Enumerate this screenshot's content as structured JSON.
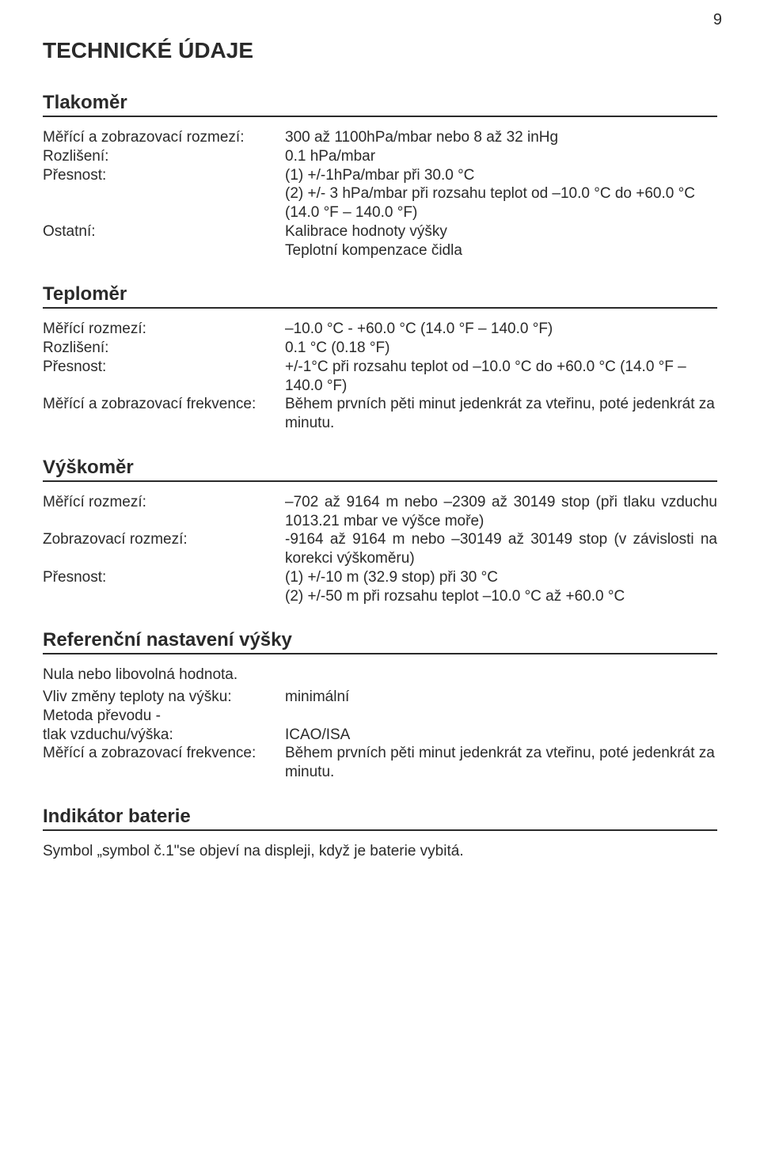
{
  "page_number": "9",
  "title": "TECHNICKÉ ÚDAJE",
  "barometer": {
    "heading": "Tlakoměr",
    "rows": {
      "range_label": "Měřící a zobrazovací rozmezí:",
      "range_value": "300 až 1100hPa/mbar nebo 8 až 32 inHg",
      "resolution_label": "Rozlišení:",
      "resolution_value": "0.1 hPa/mbar",
      "accuracy_label": "Přesnost:",
      "accuracy_line1": "(1) +/-1hPa/mbar při 30.0 °C",
      "accuracy_line2": "(2) +/- 3 hPa/mbar při rozsahu teplot od –10.0 °C do +60.0 °C (14.0 °F – 140.0 °F)",
      "other_label": "Ostatní:",
      "other_line1": "Kalibrace hodnoty výšky",
      "other_line2": "Teplotní kompenzace čidla"
    }
  },
  "thermometer": {
    "heading": "Teploměr",
    "rows": {
      "range_label": "Měřící rozmezí:",
      "range_value": "–10.0 °C - +60.0 °C (14.0 °F – 140.0 °F)",
      "resolution_label": "Rozlišení:",
      "resolution_value": "0.1 °C (0.18 °F)",
      "accuracy_label": "Přesnost:",
      "accuracy_value": "+/-1°C při rozsahu teplot od –10.0 °C do +60.0 °C (14.0 °F – 140.0 °F)",
      "freq_label": "Měřící a zobrazovací frekvence:",
      "freq_value": "Během prvních pěti minut jedenkrát za vteřinu, poté jedenkrát za minutu."
    }
  },
  "altimeter": {
    "heading": "Výškoměr",
    "rows": {
      "range_label": "Měřící rozmezí:",
      "range_value": "–702 až 9164 m nebo –2309 až 30149 stop (při tlaku vzduchu 1013.21 mbar ve výšce moře)",
      "display_label": "Zobrazovací rozmezí:",
      "display_value": "-9164 až 9164 m nebo –30149 až 30149 stop (v závislosti na korekci výškoměru)",
      "accuracy_label": "Přesnost:",
      "accuracy_line1": "(1) +/-10 m (32.9 stop) při 30 °C",
      "accuracy_line2": "(2) +/-50 m při rozsahu teplot –10.0 °C až +60.0 °C"
    }
  },
  "reference": {
    "heading": "Referenční nastavení výšky",
    "line1": "Nula nebo libovolná hodnota.",
    "rows": {
      "temp_label": "Vliv změny teploty na výšku:",
      "temp_value": "minimální",
      "method_label1": "Metoda převodu -",
      "method_label2": "tlak vzduchu/výška:",
      "method_value": "ICAO/ISA",
      "freq_label": "Měřící a zobrazovací frekvence:",
      "freq_value": "Během prvních pěti minut jedenkrát za vteřinu, poté jedenkrát za minutu."
    }
  },
  "battery": {
    "heading": "Indikátor baterie",
    "text": "Symbol „symbol č.1\"se objeví na displeji, když je baterie vybitá."
  }
}
